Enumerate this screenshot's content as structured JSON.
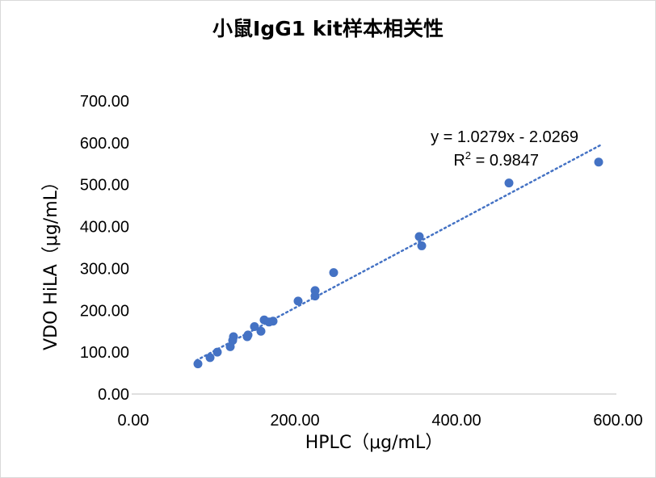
{
  "chart_data": {
    "type": "scatter",
    "title": "小鼠IgG1 kit样本相关性",
    "xlabel": "HPLC（μg/mL）",
    "ylabel": "VDO HiLA（μg/mL）",
    "xlim": [
      0,
      600
    ],
    "ylim": [
      0,
      700
    ],
    "x_ticks": [
      "0.00",
      "200.00",
      "400.00",
      "600.00"
    ],
    "y_ticks": [
      "0.00",
      "100.00",
      "200.00",
      "300.00",
      "400.00",
      "500.00",
      "600.00",
      "700.00"
    ],
    "grid": false,
    "legend": "none",
    "marker_color": "#4472c4",
    "trendline": {
      "type": "linear",
      "slope": 1.0279,
      "intercept": -2.0269,
      "x_range": [
        80,
        580
      ],
      "style": "dotted",
      "equation_label": "y = 1.0279x - 2.0269",
      "r2_label_prefix": "R",
      "r2_label_sup": "2",
      "r2_label_suffix": " = 0.9847"
    },
    "series": [
      {
        "x": [
          82,
          97,
          106,
          122,
          125,
          126,
          143,
          144,
          152,
          160,
          164,
          170,
          175,
          206,
          227,
          227,
          250,
          356,
          359,
          467,
          578
        ],
        "y": [
          72,
          87,
          100,
          113,
          128,
          137,
          137,
          141,
          161,
          150,
          177,
          172,
          174,
          222,
          234,
          247,
          290,
          376,
          354,
          504,
          554
        ]
      }
    ]
  }
}
